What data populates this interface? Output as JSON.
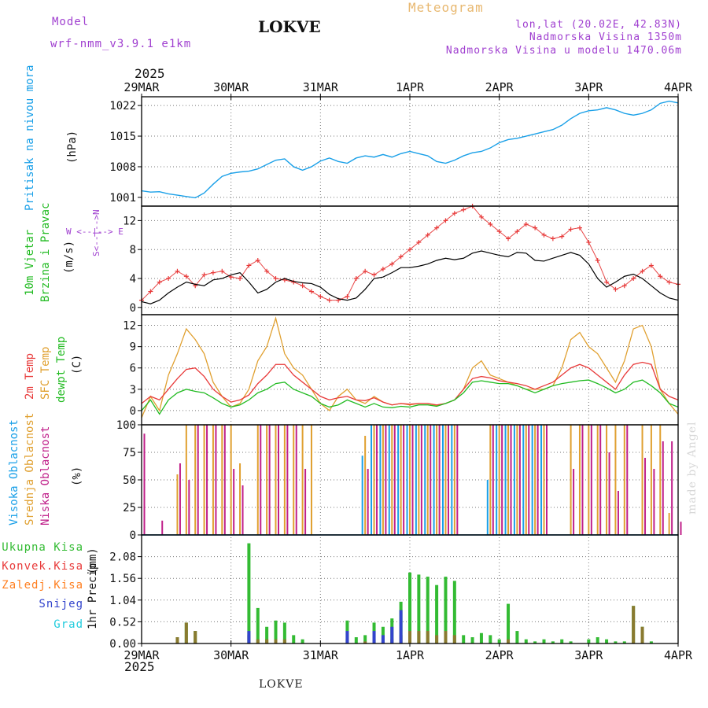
{
  "header": {
    "model_label": "Model",
    "model_name": "wrf-nmm_v3.9.1 e1km",
    "station": "LOKVE",
    "product": "Meteogram",
    "coords": "lon,lat (20.02E, 42.83N)",
    "elevation": "Nadmorska Visina 1350m",
    "model_elevation": "Nadmorska Visina u modelu 1470.06m",
    "year_top": "2025",
    "year_bottom": "2025"
  },
  "footer": {
    "station": "LOKVE",
    "credit": "made by Angel"
  },
  "colors": {
    "pressure": "#1aa0e8",
    "t2m": "#e83a3a",
    "tsfc": "#e0a030",
    "dewpt": "#22bb22",
    "cloud_high": "#1aa0e8",
    "cloud_mid": "#e0a030",
    "cloud_low": "#c0208a",
    "precip_total": "#33bb33",
    "precip_conv": "#e83a3a",
    "precip_frz": "#ff7f20",
    "precip_snow": "#3344cc",
    "precip_grad": "#22ccdd"
  },
  "chart_data": [
    {
      "id": "pressure",
      "type": "line",
      "ylabel_a": "Pritisak na nivou mora",
      "ylabel_b": "(hPa)",
      "x_ticks": [
        "29MAR",
        "30MAR",
        "31MAR",
        "1APR",
        "2APR",
        "3APR",
        "4APR"
      ],
      "ylim": [
        999,
        1024
      ],
      "y_ticks": [
        1001,
        1008,
        1015,
        1022
      ],
      "grid": true,
      "series": [
        {
          "values": [
            1002.5,
            1002.2,
            1002.3,
            1001.8,
            1001.5,
            1001.2,
            1000.9,
            1002,
            1004,
            1005.8,
            1006.5,
            1006.8,
            1007,
            1007.5,
            1008.5,
            1009.5,
            1009.8,
            1008,
            1007.2,
            1008,
            1009.3,
            1010,
            1009.2,
            1008.8,
            1010,
            1010.5,
            1010.2,
            1010.8,
            1010.2,
            1011,
            1011.5,
            1011,
            1010.5,
            1009.2,
            1008.8,
            1009.5,
            1010.5,
            1011.2,
            1011.5,
            1012.3,
            1013.5,
            1014.2,
            1014.5,
            1015,
            1015.5,
            1016,
            1016.5,
            1017.5,
            1019,
            1020.2,
            1020.8,
            1021,
            1021.5,
            1021,
            1020.2,
            1019.8,
            1020.2,
            1021,
            1022.5,
            1023,
            1022.6
          ]
        }
      ]
    },
    {
      "id": "wind",
      "type": "line",
      "ylabel_a": "10m Vjetar",
      "ylabel_b": "Brzina i Pravac",
      "ylabel_c": "(m/s)",
      "compass": "W <--|--> E",
      "compass_ns": "S<--|-->N",
      "ylim": [
        -1,
        14
      ],
      "y_ticks": [
        0,
        4,
        8,
        12
      ],
      "grid": true,
      "series": [
        {
          "name": "speed",
          "values": [
            0.8,
            0.5,
            1,
            2,
            2.8,
            3.5,
            3.2,
            3,
            3.8,
            4,
            4.5,
            4.8,
            3.5,
            2,
            2.5,
            3.5,
            4,
            3.6,
            3.4,
            3.3,
            2.8,
            1.8,
            1.2,
            1,
            1.3,
            2.5,
            4,
            4.2,
            4.8,
            5.5,
            5.5,
            5.7,
            6,
            6.5,
            6.8,
            6.6,
            6.8,
            7.5,
            7.8,
            7.5,
            7.2,
            7,
            7.6,
            7.5,
            6.5,
            6.4,
            6.8,
            7.2,
            7.6,
            7.2,
            6,
            4,
            2.8,
            3.5,
            4.3,
            4.6,
            4,
            3,
            2,
            1.3,
            1
          ]
        },
        {
          "name": "gust",
          "values": [
            1,
            2.2,
            3.5,
            4,
            5,
            4.3,
            3,
            4.5,
            4.8,
            5,
            4.2,
            4,
            5.8,
            6.5,
            5,
            4,
            3.8,
            3.5,
            3,
            2.2,
            1.5,
            1,
            1,
            1.5,
            4,
            5,
            4.5,
            5.3,
            6,
            7,
            8,
            9,
            10,
            11,
            12,
            13,
            13.5,
            14,
            12.5,
            11.5,
            10.5,
            9.5,
            10.5,
            11.5,
            11,
            10,
            9.5,
            9.8,
            10.8,
            11,
            9,
            6.5,
            3.5,
            2.5,
            3,
            4,
            5,
            5.8,
            4.3,
            3.5,
            3.2
          ]
        }
      ]
    },
    {
      "id": "temperature",
      "type": "line",
      "ylabel_a": "2m Temp",
      "ylabel_b": "SFC Temp",
      "ylabel_c": "dewpt Temp",
      "ylabel_d": "(C)",
      "ylim": [
        -2,
        13.5
      ],
      "y_ticks": [
        0,
        3,
        6,
        9,
        12
      ],
      "grid": true,
      "series": [
        {
          "name": "SFC Temp",
          "values": [
            -1,
            2,
            0,
            5,
            8,
            11.5,
            10,
            8,
            4,
            2,
            0.5,
            1,
            3,
            7,
            9,
            13,
            8,
            6,
            5,
            3,
            1,
            0,
            2,
            3,
            1.5,
            1,
            2,
            1.2,
            0.8,
            1,
            0.8,
            1,
            1,
            0.7,
            1,
            1.5,
            3,
            6,
            7,
            5,
            4.5,
            4,
            3.5,
            3,
            3,
            3,
            3.5,
            6,
            10,
            11,
            9,
            8,
            6,
            4,
            7,
            11.5,
            12,
            9,
            3,
            1,
            -0.5
          ]
        },
        {
          "name": "2m Temp",
          "values": [
            1,
            2,
            1.5,
            3,
            4.5,
            5.8,
            6,
            4.8,
            3,
            2,
            1.2,
            1.5,
            2.2,
            3.8,
            5,
            6.5,
            6.5,
            5,
            4,
            3,
            2,
            1.5,
            1.8,
            2,
            1.5,
            1.4,
            1.8,
            1.2,
            0.8,
            1,
            0.9,
            1,
            1,
            0.8,
            1,
            1.5,
            3,
            4.5,
            4.8,
            4.6,
            4.2,
            4,
            3.8,
            3.5,
            3,
            3.5,
            4,
            5,
            6,
            6.5,
            6,
            5,
            4,
            3,
            5,
            6.5,
            6.8,
            6.5,
            3,
            2,
            1.5
          ]
        },
        {
          "name": "dewpt Temp",
          "values": [
            0,
            1.5,
            -0.5,
            1.5,
            2.5,
            3,
            2.7,
            2.5,
            1.8,
            1,
            0.5,
            0.8,
            1.5,
            2.5,
            3,
            3.8,
            4,
            3,
            2.5,
            2,
            1,
            0.5,
            0.8,
            1.5,
            1,
            0.5,
            1,
            0.5,
            0.4,
            0.6,
            0.5,
            0.8,
            0.8,
            0.6,
            1,
            1.5,
            2.5,
            4,
            4.2,
            4,
            3.8,
            3.8,
            3.5,
            3,
            2.5,
            3,
            3.5,
            3.8,
            4,
            4.2,
            4.3,
            3.8,
            3.2,
            2.5,
            3,
            4,
            4.3,
            3.5,
            2.5,
            1,
            0.5
          ]
        }
      ]
    },
    {
      "id": "cloud",
      "type": "bar",
      "ylabel_a": "Visoka Oblacnost",
      "ylabel_b": "Srednja Oblacnost",
      "ylabel_c": "Niska Oblacnost",
      "ylabel_d": "(%)",
      "ylim": [
        0,
        100
      ],
      "y_ticks": [
        0,
        25,
        50,
        75,
        100
      ],
      "grid": true,
      "series": [
        {
          "name": "Visoka Oblacnost",
          "values": [
            0,
            0,
            0,
            0,
            0,
            0,
            0,
            0,
            0,
            0,
            0,
            0,
            0,
            0,
            0,
            0,
            0,
            0,
            0,
            0,
            0,
            0,
            0,
            0,
            0,
            72,
            100,
            100,
            100,
            100,
            100,
            100,
            100,
            100,
            100,
            100,
            0,
            0,
            0,
            50,
            100,
            100,
            100,
            100,
            100,
            100,
            0,
            0,
            0,
            0,
            0,
            0,
            0,
            0,
            0,
            0,
            0,
            0,
            0,
            0,
            0
          ]
        },
        {
          "name": "Srednja Oblacnost",
          "values": [
            0,
            0,
            0,
            0,
            55,
            100,
            100,
            100,
            100,
            100,
            100,
            65,
            0,
            100,
            100,
            100,
            100,
            100,
            100,
            100,
            0,
            0,
            0,
            0,
            0,
            90,
            100,
            100,
            100,
            100,
            100,
            100,
            100,
            100,
            100,
            100,
            0,
            0,
            0,
            100,
            100,
            100,
            100,
            100,
            100,
            100,
            0,
            0,
            100,
            100,
            100,
            100,
            100,
            100,
            100,
            0,
            100,
            100,
            100,
            20,
            0
          ]
        },
        {
          "name": "Niska Oblacnost",
          "values": [
            92,
            0,
            13,
            0,
            65,
            50,
            100,
            100,
            100,
            100,
            60,
            45,
            0,
            100,
            100,
            100,
            100,
            100,
            60,
            0,
            0,
            0,
            0,
            0,
            0,
            60,
            100,
            100,
            100,
            100,
            100,
            100,
            100,
            100,
            100,
            100,
            0,
            0,
            0,
            100,
            100,
            100,
            100,
            100,
            100,
            100,
            0,
            0,
            60,
            100,
            100,
            100,
            75,
            40,
            100,
            0,
            70,
            60,
            85,
            85,
            12
          ]
        }
      ]
    },
    {
      "id": "precip",
      "type": "bar",
      "ylabel_a": "1hr Precip",
      "ylabel_b": "(mm)",
      "ylim": [
        0,
        2.6
      ],
      "y_ticks": [
        0,
        0.52,
        1.04,
        1.56,
        2.08
      ],
      "grid": true,
      "legend": [
        "Ukupna Kisa",
        "Konvek.Kisa",
        "Zaledj.Kisa",
        "Snijeg",
        "Grad"
      ],
      "series": [
        {
          "name": "Ukupna Kisa",
          "values": [
            0,
            0,
            0,
            0,
            0.15,
            0.5,
            0.3,
            0,
            0,
            0,
            0,
            0,
            2.4,
            0.85,
            0.4,
            0.55,
            0.5,
            0.2,
            0.1,
            0,
            0,
            0,
            0,
            0.55,
            0.15,
            0.2,
            0.5,
            0.4,
            0.6,
            1,
            1.7,
            1.65,
            1.6,
            1.4,
            1.6,
            1.5,
            0.2,
            0.15,
            0.25,
            0.2,
            0.1,
            0.95,
            0.3,
            0.1,
            0.05,
            0.1,
            0.05,
            0.1,
            0.05,
            0,
            0.1,
            0.15,
            0.1,
            0.05,
            0.05,
            0.9,
            0.4,
            0.05,
            0,
            0,
            0
          ]
        },
        {
          "name": "Konvek.Kisa",
          "values": [
            0,
            0,
            0,
            0,
            0.15,
            0.5,
            0.3,
            0,
            0,
            0,
            0,
            0,
            0.2,
            0.1,
            0.1,
            0.1,
            0.1,
            0,
            0,
            0,
            0,
            0,
            0,
            0.1,
            0,
            0.05,
            0.1,
            0.05,
            0.1,
            0.2,
            0.3,
            0.3,
            0.3,
            0.2,
            0.3,
            0.2,
            0,
            0,
            0,
            0,
            0,
            0.1,
            0,
            0,
            0,
            0,
            0,
            0,
            0,
            0,
            0,
            0,
            0,
            0,
            0,
            0.9,
            0.4,
            0,
            0,
            0,
            0
          ]
        },
        {
          "name": "Snijeg",
          "values": [
            0,
            0,
            0,
            0,
            0,
            0,
            0,
            0,
            0,
            0,
            0,
            0,
            0.3,
            0,
            0,
            0,
            0,
            0,
            0,
            0,
            0,
            0,
            0,
            0.3,
            0,
            0,
            0.3,
            0.2,
            0.4,
            0.8,
            0,
            0,
            0,
            0,
            0,
            0,
            0,
            0,
            0,
            0,
            0,
            0,
            0,
            0,
            0,
            0,
            0,
            0,
            0,
            0,
            0,
            0,
            0,
            0,
            0,
            0,
            0,
            0,
            0,
            0,
            0
          ]
        }
      ]
    }
  ]
}
